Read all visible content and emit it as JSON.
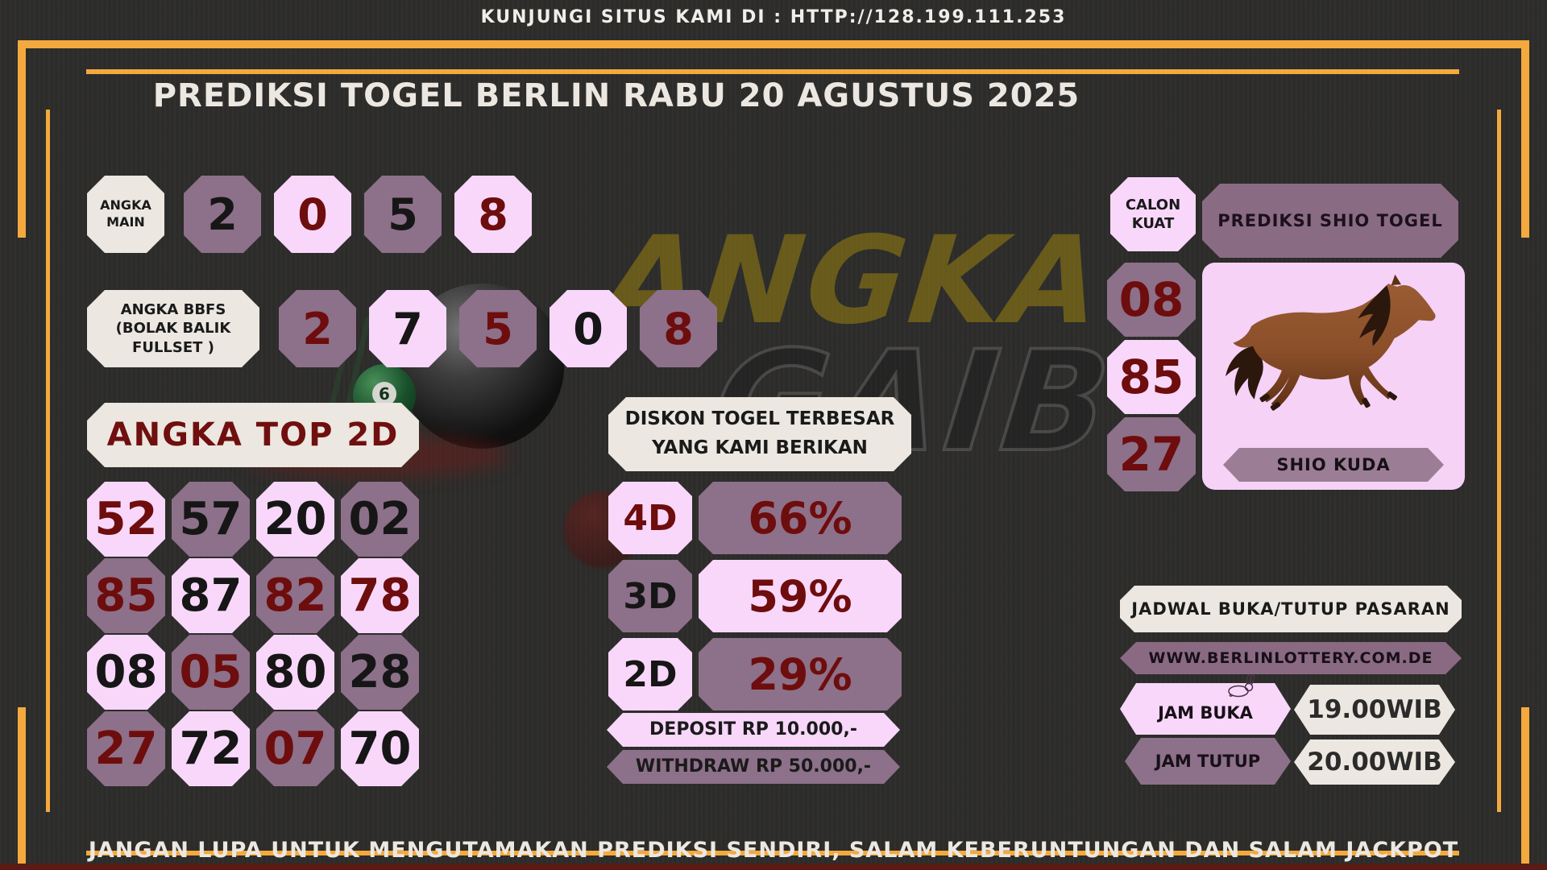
{
  "header": {
    "visit_text": "KUNJUNGI SITUS KAMI DI : HTTP://128.199.111.253",
    "title": "PREDIKSI TOGEL BERLIN RABU 20 AGUSTUS 2025"
  },
  "angka_main": {
    "label_lines": [
      "ANGKA",
      "MAIN"
    ],
    "digits": [
      {
        "value": "2",
        "bg": "mauve",
        "fg": "black"
      },
      {
        "value": "0",
        "bg": "pink",
        "fg": "red"
      },
      {
        "value": "5",
        "bg": "mauve",
        "fg": "black"
      },
      {
        "value": "8",
        "bg": "pink",
        "fg": "red"
      }
    ]
  },
  "angka_bbfs": {
    "label_lines": [
      "ANGKA BBFS",
      "(BOLAK BALIK",
      "FULLSET )"
    ],
    "digits": [
      {
        "value": "2",
        "bg": "mauve",
        "fg": "red"
      },
      {
        "value": "7",
        "bg": "pink",
        "fg": "black"
      },
      {
        "value": "5",
        "bg": "mauve",
        "fg": "red"
      },
      {
        "value": "0",
        "bg": "pink",
        "fg": "black"
      },
      {
        "value": "8",
        "bg": "mauve",
        "fg": "red"
      }
    ]
  },
  "angka_top_2d": {
    "label": "ANGKA TOP 2D",
    "cells": [
      {
        "value": "52",
        "bg": "pink",
        "fg": "red"
      },
      {
        "value": "57",
        "bg": "mauve",
        "fg": "black"
      },
      {
        "value": "20",
        "bg": "pink",
        "fg": "black"
      },
      {
        "value": "02",
        "bg": "mauve",
        "fg": "black"
      },
      {
        "value": "85",
        "bg": "mauve",
        "fg": "red"
      },
      {
        "value": "87",
        "bg": "pink",
        "fg": "black"
      },
      {
        "value": "82",
        "bg": "mauve",
        "fg": "red"
      },
      {
        "value": "78",
        "bg": "pink",
        "fg": "red"
      },
      {
        "value": "08",
        "bg": "pink",
        "fg": "black"
      },
      {
        "value": "05",
        "bg": "mauve",
        "fg": "red"
      },
      {
        "value": "80",
        "bg": "pink",
        "fg": "black"
      },
      {
        "value": "28",
        "bg": "mauve",
        "fg": "black"
      },
      {
        "value": "27",
        "bg": "mauve",
        "fg": "red"
      },
      {
        "value": "72",
        "bg": "pink",
        "fg": "black"
      },
      {
        "value": "07",
        "bg": "mauve",
        "fg": "red"
      },
      {
        "value": "70",
        "bg": "pink",
        "fg": "black"
      }
    ]
  },
  "diskon": {
    "title_lines": [
      "DISKON TOGEL TERBESAR",
      "YANG KAMI BERIKAN"
    ],
    "rows": [
      {
        "label": "4D",
        "value": "66%"
      },
      {
        "label": "3D",
        "value": "59%"
      },
      {
        "label": "2D",
        "value": "29%"
      }
    ],
    "deposit": "DEPOSIT RP 10.000,-",
    "withdraw": "WITHDRAW RP 50.000,-"
  },
  "shio": {
    "calon_label_lines": [
      "CALON",
      "KUAT"
    ],
    "panel_title": "PREDIKSI SHIO TOGEL",
    "numbers": [
      {
        "value": "08",
        "bg": "mauve",
        "fg": "red"
      },
      {
        "value": "85",
        "bg": "pink",
        "fg": "red"
      },
      {
        "value": "27",
        "bg": "mauve",
        "fg": "red"
      }
    ],
    "animal_label": "SHIO KUDA",
    "animal_icon": "horse-image"
  },
  "jadwal": {
    "title": "JADWAL BUKA/TUTUP PASARAN",
    "website": "WWW.BERLINLOTTERY.COM.DE",
    "rows": [
      {
        "label": "JAM BUKA",
        "value": "19.00WIB",
        "icon": "rabbit-icon"
      },
      {
        "label": "JAM TUTUP",
        "value": "20.00WIB"
      }
    ]
  },
  "watermark": {
    "line1": "ANGKA",
    "line2": "GAIB"
  },
  "footer": {
    "text": "JANGAN LUPA UNTUK MENGUTAMAKAN PREDIKSI SENDIRI, SALAM KEBERUNTUNGAN DAN SALAM JACKPOT"
  },
  "colors": {
    "accent_orange": "#f4a93e",
    "pink": "#f8d7fa",
    "mauve": "#8d7089",
    "cream": "#ece7e0",
    "dark_red": "#6e0d0d",
    "background": "#2f2e2c",
    "maroon_strip": "#5a1a15"
  }
}
